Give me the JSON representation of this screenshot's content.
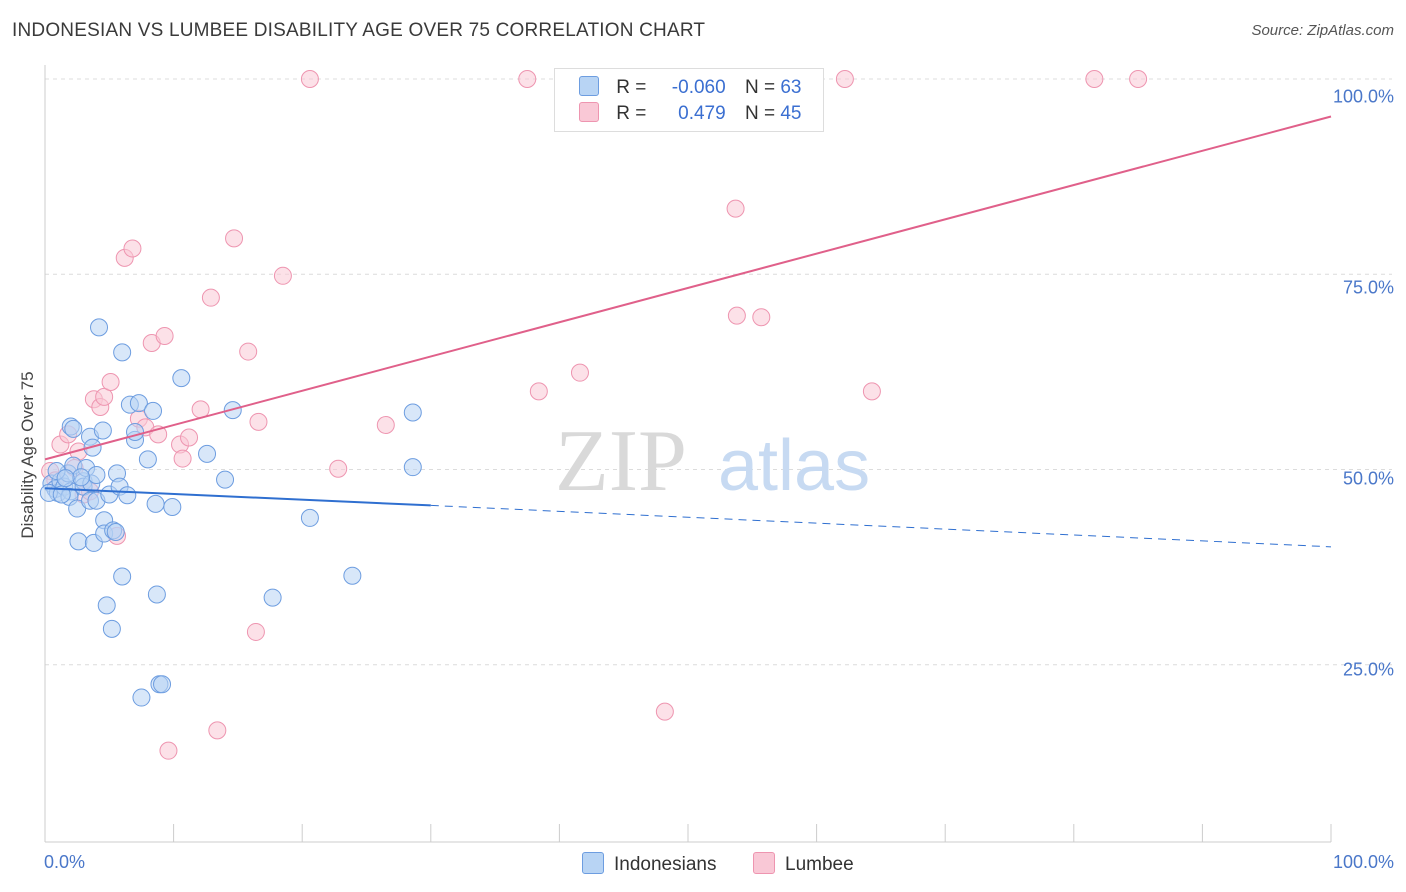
{
  "title": "INDONESIAN VS LUMBEE DISABILITY AGE OVER 75 CORRELATION CHART",
  "source": "Source: ZipAtlas.com",
  "watermark": {
    "zip": "ZIP",
    "atlas": "atlas"
  },
  "colors": {
    "blue_fill": "#b8d4f4",
    "blue_stroke": "#6d9de0",
    "blue_line": "#2f6fd0",
    "pink_fill": "#f9c8d6",
    "pink_stroke": "#ee95b0",
    "pink_line": "#e0608a",
    "axis_text": "#4a77c9"
  },
  "legend": {
    "rows": [
      {
        "r_label": "R =",
        "r_value": "-0.060",
        "n_label": "N =",
        "n_value": "63"
      },
      {
        "r_label": "R =",
        "r_value": "0.479",
        "n_label": "N =",
        "n_value": "45"
      }
    ]
  },
  "bottom_legend": {
    "series1": "Indonesians",
    "series2": "Lumbee"
  },
  "chart_data": {
    "type": "scatter",
    "title": "INDONESIAN VS LUMBEE DISABILITY AGE OVER 75 CORRELATION CHART",
    "ylabel": "Disability Age Over 75",
    "xlabel": "",
    "xlim": [
      0,
      100
    ],
    "ylim": [
      0,
      105
    ],
    "x_ticks": [
      "0.0%",
      "100.0%"
    ],
    "y_ticks": [
      {
        "value": 25,
        "label": "25.0%"
      },
      {
        "value": 50,
        "label": "50.0%"
      },
      {
        "value": 75,
        "label": "75.0%"
      },
      {
        "value": 100,
        "label": "100.0%"
      }
    ],
    "grid": true,
    "series": [
      {
        "name": "Indonesians",
        "color": "#6d9de0",
        "r": -0.06,
        "n": 63,
        "trend": {
          "x0": 0,
          "y0": 47.6,
          "x1": 30,
          "y1": 45.4,
          "dashed_to_x": 100,
          "dashed_to_y": 40.1
        },
        "points": [
          [
            0.5,
            48.2
          ],
          [
            0.8,
            47.5
          ],
          [
            1.0,
            47.0
          ],
          [
            1.2,
            48.5
          ],
          [
            1.5,
            47.8
          ],
          [
            1.8,
            49.5
          ],
          [
            2.0,
            47.2
          ],
          [
            2.2,
            50.5
          ],
          [
            2.0,
            55.5
          ],
          [
            2.2,
            55.2
          ],
          [
            1.9,
            46.5
          ],
          [
            2.5,
            45.0
          ],
          [
            2.6,
            40.8
          ],
          [
            3.0,
            48.5
          ],
          [
            3.2,
            50.2
          ],
          [
            3.0,
            47.8
          ],
          [
            3.5,
            54.2
          ],
          [
            3.6,
            48.2
          ],
          [
            3.5,
            46.0
          ],
          [
            3.7,
            52.8
          ],
          [
            3.8,
            40.6
          ],
          [
            4.0,
            49.3
          ],
          [
            4.0,
            46.0
          ],
          [
            4.2,
            68.2
          ],
          [
            4.5,
            55.0
          ],
          [
            4.6,
            43.5
          ],
          [
            4.6,
            41.8
          ],
          [
            4.8,
            32.6
          ],
          [
            5.0,
            46.8
          ],
          [
            5.2,
            29.6
          ],
          [
            5.3,
            42.2
          ],
          [
            5.5,
            42.0
          ],
          [
            5.6,
            49.5
          ],
          [
            5.8,
            47.8
          ],
          [
            6.0,
            36.3
          ],
          [
            6.0,
            65.0
          ],
          [
            6.4,
            46.7
          ],
          [
            6.6,
            58.3
          ],
          [
            7.0,
            53.8
          ],
          [
            7.0,
            54.8
          ],
          [
            7.3,
            58.5
          ],
          [
            7.5,
            20.8
          ],
          [
            8.0,
            51.3
          ],
          [
            8.4,
            57.5
          ],
          [
            8.6,
            45.6
          ],
          [
            8.7,
            34.0
          ],
          [
            8.9,
            22.5
          ],
          [
            9.1,
            22.5
          ],
          [
            9.9,
            45.2
          ],
          [
            10.6,
            61.7
          ],
          [
            12.6,
            52.0
          ],
          [
            14.0,
            48.7
          ],
          [
            14.6,
            57.6
          ],
          [
            17.7,
            33.6
          ],
          [
            20.6,
            43.8
          ],
          [
            23.9,
            36.4
          ],
          [
            28.6,
            57.3
          ],
          [
            28.6,
            50.3
          ],
          [
            0.3,
            47.0
          ],
          [
            1.3,
            46.8
          ],
          [
            2.8,
            49.0
          ],
          [
            0.9,
            49.8
          ],
          [
            1.6,
            48.9
          ]
        ]
      },
      {
        "name": "Lumbee",
        "color": "#ee95b0",
        "r": 0.479,
        "n": 45,
        "trend": {
          "x0": 0,
          "y0": 51.3,
          "x1": 100,
          "y1": 95.2
        },
        "points": [
          [
            0.4,
            49.8
          ],
          [
            0.8,
            48.6
          ],
          [
            1.2,
            53.2
          ],
          [
            1.8,
            54.5
          ],
          [
            2.3,
            50.2
          ],
          [
            2.6,
            52.3
          ],
          [
            3.0,
            46.8
          ],
          [
            3.5,
            47.2
          ],
          [
            3.8,
            59.0
          ],
          [
            4.3,
            58.0
          ],
          [
            4.6,
            59.3
          ],
          [
            5.1,
            61.2
          ],
          [
            5.6,
            41.5
          ],
          [
            6.2,
            77.1
          ],
          [
            6.8,
            78.3
          ],
          [
            7.3,
            56.5
          ],
          [
            7.8,
            55.4
          ],
          [
            8.3,
            66.2
          ],
          [
            8.8,
            54.5
          ],
          [
            9.3,
            67.1
          ],
          [
            9.6,
            14.0
          ],
          [
            10.5,
            53.2
          ],
          [
            10.7,
            51.4
          ],
          [
            11.2,
            54.1
          ],
          [
            12.1,
            57.7
          ],
          [
            12.9,
            72.0
          ],
          [
            13.4,
            16.6
          ],
          [
            14.7,
            79.6
          ],
          [
            15.8,
            65.1
          ],
          [
            16.4,
            29.2
          ],
          [
            16.6,
            56.1
          ],
          [
            18.5,
            74.8
          ],
          [
            20.6,
            100.0
          ],
          [
            22.8,
            50.1
          ],
          [
            26.5,
            55.7
          ],
          [
            37.5,
            100.0
          ],
          [
            38.4,
            60.0
          ],
          [
            41.6,
            62.4
          ],
          [
            48.2,
            19.0
          ],
          [
            53.7,
            83.4
          ],
          [
            53.8,
            69.7
          ],
          [
            55.7,
            69.5
          ],
          [
            62.2,
            100.0
          ],
          [
            64.3,
            60.0
          ],
          [
            81.6,
            100.0
          ]
        ]
      }
    ],
    "extra_points_lumbee_top": [
      [
        85.0,
        100.0
      ]
    ]
  }
}
